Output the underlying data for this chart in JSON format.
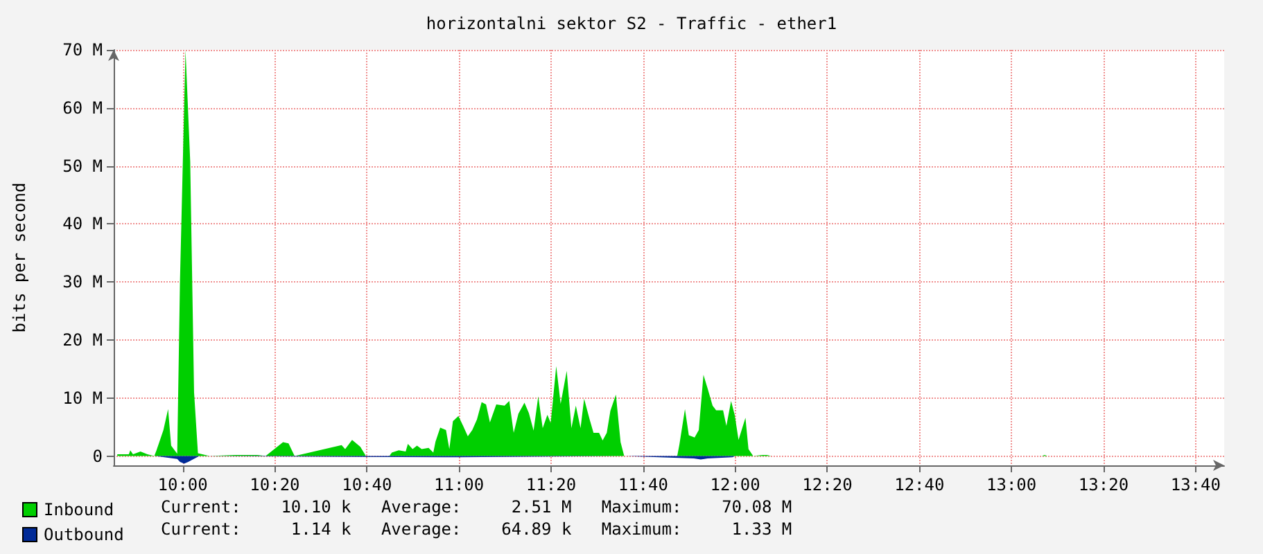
{
  "chart_data": {
    "type": "area",
    "title": "horizontalni sektor S2 - Traffic - ether1",
    "ylabel": "bits per second",
    "xlim": [
      9.75,
      13.77
    ],
    "xticks": [
      {
        "value": 10,
        "label": "10:00"
      },
      {
        "value": 10.3333,
        "label": "10:20"
      },
      {
        "value": 10.6667,
        "label": "10:40"
      },
      {
        "value": 11,
        "label": "11:00"
      },
      {
        "value": 11.3333,
        "label": "11:20"
      },
      {
        "value": 11.6667,
        "label": "11:40"
      },
      {
        "value": 12,
        "label": "12:00"
      },
      {
        "value": 12.3333,
        "label": "12:20"
      },
      {
        "value": 12.6667,
        "label": "12:40"
      },
      {
        "value": 13,
        "label": "13:00"
      },
      {
        "value": 13.3333,
        "label": "13:20"
      },
      {
        "value": 13.6667,
        "label": "13:40"
      }
    ],
    "ylim": [
      -1.6,
      70
    ],
    "yticks": [
      0,
      {
        "value": 10,
        "label": "10 M"
      },
      {
        "value": 20,
        "label": "20 M"
      },
      {
        "value": 30,
        "label": "30 M"
      },
      {
        "value": 40,
        "label": "40 M"
      },
      {
        "value": 50,
        "label": "50 M"
      },
      {
        "value": 60,
        "label": "60 M"
      },
      {
        "value": 70,
        "label": "70 M"
      }
    ],
    "series": [
      {
        "name": "Inbound",
        "color": "#00cf00",
        "x": [
          9.763,
          9.805,
          9.81,
          9.82,
          9.847,
          9.872,
          9.897,
          9.905,
          9.93,
          9.947,
          9.958,
          9.98,
          9.99,
          10.01,
          10.027,
          10.041,
          10.055,
          10.097,
          10.19,
          10.27,
          10.3,
          10.363,
          10.383,
          10.405,
          10.575,
          10.588,
          10.613,
          10.643,
          10.663,
          10.748,
          10.757,
          10.782,
          10.807,
          10.815,
          10.832,
          10.848,
          10.865,
          10.89,
          10.907,
          10.915,
          10.932,
          10.953,
          10.965,
          10.978,
          10.998,
          11.015,
          11.032,
          11.048,
          11.065,
          11.082,
          11.098,
          11.112,
          11.135,
          11.165,
          11.182,
          11.198,
          11.215,
          11.237,
          11.253,
          11.27,
          11.287,
          11.303,
          11.32,
          11.332,
          11.352,
          11.368,
          11.39,
          11.407,
          11.423,
          11.44,
          11.453,
          11.473,
          11.487,
          11.507,
          11.52,
          11.535,
          11.548,
          11.568,
          11.585,
          11.598,
          11.79,
          11.798,
          11.818,
          11.832,
          11.853,
          11.868,
          11.885,
          11.901,
          11.918,
          11.931,
          11.956,
          11.968,
          11.985,
          11.998,
          12.012,
          12.037,
          12.048,
          12.065,
          12.098,
          12.115,
          12.13,
          13.11,
          13.12,
          13.13
        ],
        "values": [
          0.3,
          0.3,
          1,
          0.3,
          0.8,
          0.3,
          0,
          1,
          4.5,
          8.1,
          1.8,
          0.4,
          30.2,
          70,
          50.8,
          11,
          0.5,
          0,
          0.2,
          0.2,
          0,
          2.4,
          2.2,
          0,
          1.9,
          1.2,
          2.8,
          1.6,
          0,
          0,
          0.6,
          1,
          0.8,
          2.1,
          1.2,
          1.8,
          1.2,
          1.4,
          0.6,
          2.5,
          4.9,
          4.5,
          1.2,
          6,
          6.9,
          5.2,
          3.4,
          4.5,
          6.3,
          9.3,
          8.9,
          5.8,
          8.9,
          8.7,
          9.5,
          4,
          7.3,
          9.2,
          7.4,
          4.4,
          10.3,
          4.8,
          7.1,
          5.7,
          15.5,
          9,
          14.7,
          4.8,
          8.7,
          4.8,
          9.9,
          6.3,
          4,
          4,
          2.7,
          4,
          7.8,
          10.6,
          2.4,
          0,
          0,
          2,
          8.1,
          3.6,
          3.2,
          4.5,
          14,
          11.5,
          8.7,
          7.9,
          7.9,
          5.2,
          9.5,
          7.1,
          2.8,
          6.6,
          1.2,
          0,
          0.2,
          0.2,
          0,
          0,
          0.2,
          0
        ]
      },
      {
        "name": "Outbound",
        "color": "#002a97",
        "x": [
          9.9,
          9.98,
          9.99,
          10.005,
          10.02,
          10.04,
          10.06,
          10.95,
          11.0,
          11.6,
          11.85,
          11.875,
          11.9,
          11.99,
          12.0
        ],
        "values": [
          0,
          -0.5,
          -1,
          -1.3,
          -1,
          -0.5,
          0,
          -0.2,
          -0.2,
          0,
          -0.4,
          -0.6,
          -0.4,
          -0.2,
          0
        ]
      }
    ],
    "grid": true,
    "legend": "bottom left",
    "annotations": [
      "Current:    10.10 k   Average:     2.51 M   Maximum:    70.08 M",
      "Current:     1.14 k   Average:    64.89 k   Maximum:     1.33 M"
    ]
  }
}
